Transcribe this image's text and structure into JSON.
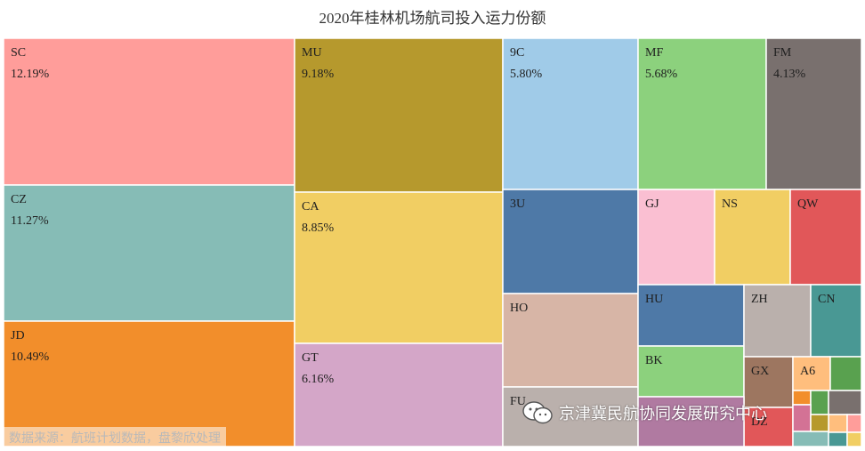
{
  "title": "2020年桂林机场航司投入运力份额",
  "source_note": "数据来源：航班计划数据，盘黎欣处理",
  "watermark": {
    "text": "京津冀民航协同发展研究中心",
    "icon": "wechat-icon"
  },
  "chart_data": {
    "type": "treemap",
    "title": "2020年桂林机场航司投入运力份额",
    "items": [
      {
        "name": "SC",
        "value": 12.19,
        "label": "12.19%",
        "color": "#ff9d9a"
      },
      {
        "name": "CZ",
        "value": 11.27,
        "label": "11.27%",
        "color": "#86bcb6"
      },
      {
        "name": "JD",
        "value": 10.49,
        "label": "10.49%",
        "color": "#f28e2b"
      },
      {
        "name": "MU",
        "value": 9.18,
        "label": "9.18%",
        "color": "#b6992d"
      },
      {
        "name": "CA",
        "value": 8.85,
        "label": "8.85%",
        "color": "#f1ce63"
      },
      {
        "name": "GT",
        "value": 6.16,
        "label": "6.16%",
        "color": "#d4a6c8"
      },
      {
        "name": "9C",
        "value": 5.8,
        "label": "5.80%",
        "color": "#a0cbe8"
      },
      {
        "name": "3U",
        "value": 5.3,
        "label": "",
        "color": "#4e79a7"
      },
      {
        "name": "HO",
        "value": 4.95,
        "label": "",
        "color": "#d7b5a6"
      },
      {
        "name": "FU",
        "value": 2.9,
        "label": "",
        "color": "#bab0ac"
      },
      {
        "name": "MF",
        "value": 5.68,
        "label": "5.68%",
        "color": "#8cd17d"
      },
      {
        "name": "FM",
        "value": 4.13,
        "label": "4.13%",
        "color": "#79706e"
      },
      {
        "name": "GJ",
        "value": 2.9,
        "label": "",
        "color": "#fabfd2"
      },
      {
        "name": "NS",
        "value": 2.9,
        "label": "",
        "color": "#f1ce63"
      },
      {
        "name": "QW",
        "value": 2.9,
        "label": "",
        "color": "#e15759"
      },
      {
        "name": "HU",
        "value": 2.2,
        "label": "",
        "color": "#4e79a7"
      },
      {
        "name": "BK",
        "value": 1.9,
        "label": "",
        "color": "#8cd17d"
      },
      {
        "name": "ZH",
        "value": 1.7,
        "label": "",
        "color": "#bab0ac"
      },
      {
        "name": "CN",
        "value": 1.7,
        "label": "",
        "color": "#499894"
      },
      {
        "name": "GX",
        "value": 1.3,
        "label": "",
        "color": "#9d7660"
      },
      {
        "name": "A6",
        "value": 0.8,
        "label": "",
        "color": "#ffbe7d"
      },
      {
        "name": "DZ",
        "value": 0.8,
        "label": "",
        "color": "#e15759"
      }
    ],
    "unlabeled_small_tiles": [
      {
        "value": 1.1,
        "color": "#b07aa1"
      },
      {
        "value": 0.5,
        "color": "#59a14f"
      },
      {
        "value": 0.4,
        "color": "#f28e2b"
      },
      {
        "value": 0.3,
        "color": "#59a14f"
      },
      {
        "value": 0.3,
        "color": "#79706e"
      },
      {
        "value": 0.3,
        "color": "#d37295"
      },
      {
        "value": 0.2,
        "color": "#86bcb6"
      },
      {
        "value": 0.2,
        "color": "#ffbe7d"
      },
      {
        "value": 0.2,
        "color": "#ff9d9a"
      },
      {
        "value": 0.2,
        "color": "#499894"
      },
      {
        "value": 0.2,
        "color": "#f1ce63"
      },
      {
        "value": 0.15,
        "color": "#b6992d"
      }
    ]
  }
}
